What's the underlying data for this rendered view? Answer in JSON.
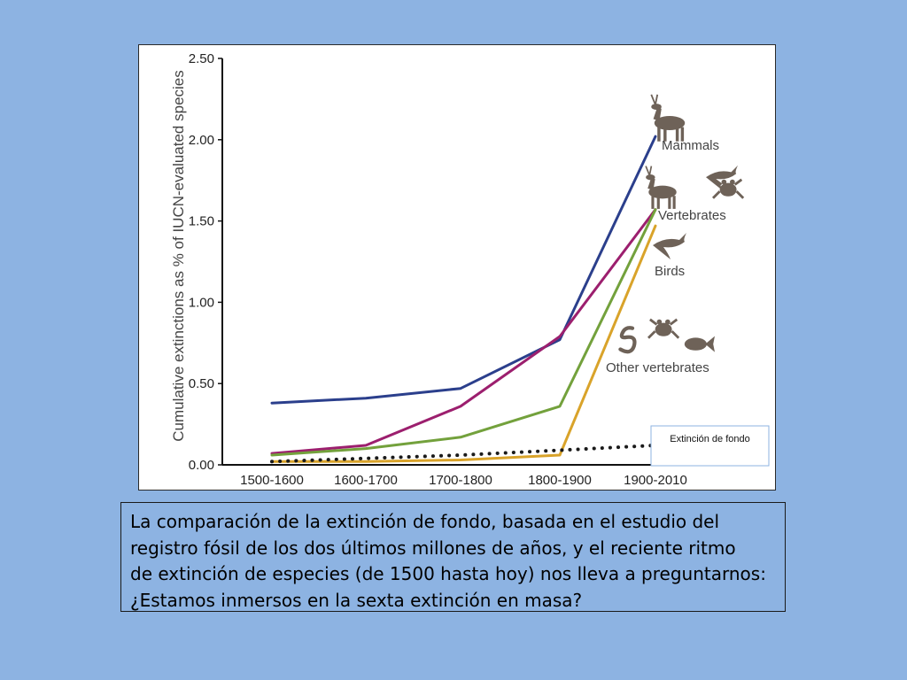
{
  "chart_data": {
    "type": "line",
    "categories": [
      "1500-1600",
      "1600-1700",
      "1700-1800",
      "1800-1900",
      "1900-2010"
    ],
    "xlabel": "",
    "ylabel": "Cumulative extinctions as % of IUCN-evaluated species",
    "ylim": [
      0,
      2.5
    ],
    "yticks": [
      "0.00",
      "0.50",
      "1.00",
      "1.50",
      "2.00",
      "2.50"
    ],
    "grid": false,
    "series": [
      {
        "name": "Mammals",
        "color": "#2b3f8c",
        "values": [
          0.38,
          0.41,
          0.47,
          0.77,
          2.02
        ]
      },
      {
        "name": "Vertebrates",
        "color": "#9c1f6e",
        "values": [
          0.07,
          0.12,
          0.36,
          0.79,
          1.57
        ]
      },
      {
        "name": "Birds",
        "color": "#d9a32a",
        "values": [
          0.02,
          0.02,
          0.03,
          0.06,
          1.47
        ]
      },
      {
        "name": "Other vertebrates",
        "color": "#73a13c",
        "values": [
          0.06,
          0.1,
          0.17,
          0.36,
          1.57
        ]
      },
      {
        "name": "Extinción de fondo",
        "color": "#1a1a1a",
        "style": "dotted",
        "values": [
          0.02,
          0.04,
          0.06,
          0.09,
          0.12
        ]
      }
    ],
    "icons": [
      "deer-icon",
      "deer-icon",
      "bird-icon",
      "frog-icon",
      "bird-icon",
      "snake-icon",
      "frog-icon",
      "fish-icon"
    ]
  },
  "caption": "La comparación de la extinción de fondo, basada en el estudio del\nregistro fósil de los dos últimos millones de años, y el reciente ritmo\nde extinción de especies (de 1500 hasta hoy) nos lleva a preguntarnos:\n¿Estamos inmersos en la sexta extinción en masa?"
}
